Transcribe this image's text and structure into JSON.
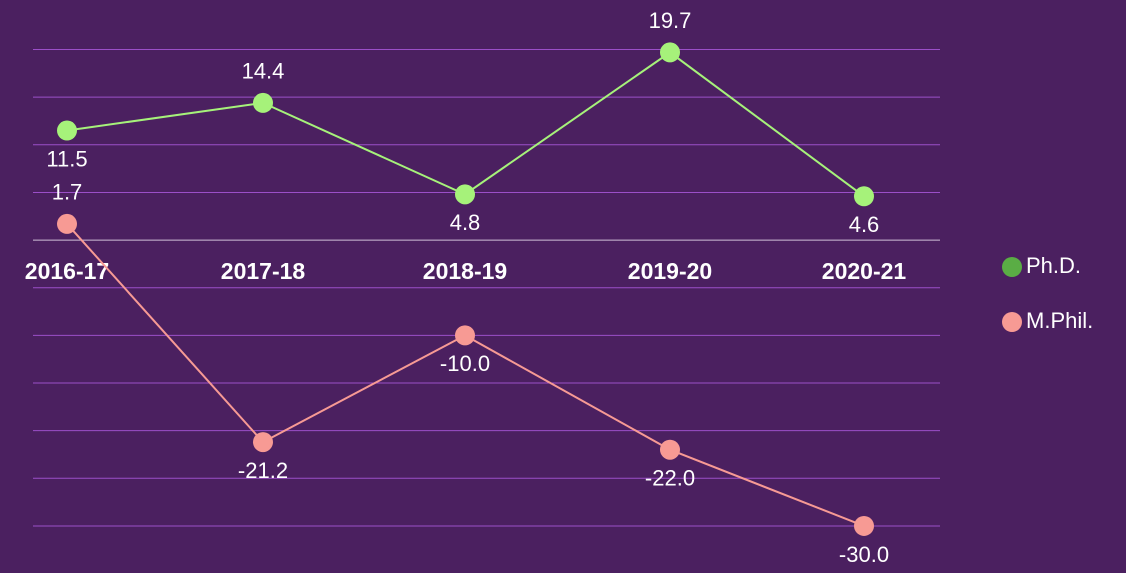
{
  "chart_data": {
    "type": "line",
    "categories": [
      "2016-17",
      "2017-18",
      "2018-19",
      "2019-20",
      "2020-21"
    ],
    "series": [
      {
        "name": "Ph.D.",
        "color": "#a6f27a",
        "legend_color": "#5aad45",
        "values": [
          11.5,
          14.4,
          4.8,
          19.7,
          4.6
        ]
      },
      {
        "name": "M.Phil.",
        "color": "#f79a94",
        "legend_color": "#f79a94",
        "values": [
          1.7,
          -21.2,
          -10.0,
          -22.0,
          -30.0
        ],
        "value_labels": [
          "1.7",
          "-21.2",
          "-10.0",
          "-22.0",
          "-30.0"
        ]
      }
    ],
    "ylim": [
      -32,
      21
    ],
    "yticks": [
      -30,
      -25,
      -20,
      -15,
      -10,
      -5,
      5,
      10,
      15,
      20
    ],
    "grid": true,
    "legend": "right"
  }
}
